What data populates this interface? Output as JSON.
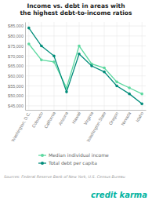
{
  "chart_data": {
    "type": "line",
    "title": "Income vs. debt in areas with\nthe highest debt-to-income ratios",
    "categories": [
      "Washington, D.C.",
      "Colorado",
      "California",
      "Arizona",
      "Hawaii",
      "Virginia",
      "Washington State",
      "Oregon",
      "Nevada",
      "Idaho"
    ],
    "series": [
      {
        "name": "Median individual income",
        "color": "#5dd9a0",
        "marker": "circle",
        "values": [
          76000,
          68000,
          67000,
          54000,
          75000,
          66000,
          64000,
          57000,
          54000,
          51000
        ]
      },
      {
        "name": "Total debt per capita",
        "color": "#008c7a",
        "marker": "circle",
        "values": [
          84000,
          75000,
          70000,
          52000,
          71000,
          65000,
          62000,
          55000,
          51000,
          46000
        ]
      }
    ],
    "ylim": [
      43000,
      87000
    ],
    "yticks": [
      {
        "value": 45000,
        "label": "$45,000"
      },
      {
        "value": 50000,
        "label": "$50,000"
      },
      {
        "value": 55000,
        "label": "$55,000"
      },
      {
        "value": 60000,
        "label": "$60,000"
      },
      {
        "value": 65000,
        "label": "$65,000"
      },
      {
        "value": 70000,
        "label": "$70,000"
      },
      {
        "value": 75000,
        "label": "$75,000"
      },
      {
        "value": 80000,
        "label": "$80,000"
      },
      {
        "value": 85000,
        "label": "$85,000"
      }
    ],
    "grid": true,
    "legend": "bottom",
    "annotations": [
      "Sources: Federal Reserve Bank of New York, U.S. Census Bureau",
      "credit karma"
    ]
  }
}
